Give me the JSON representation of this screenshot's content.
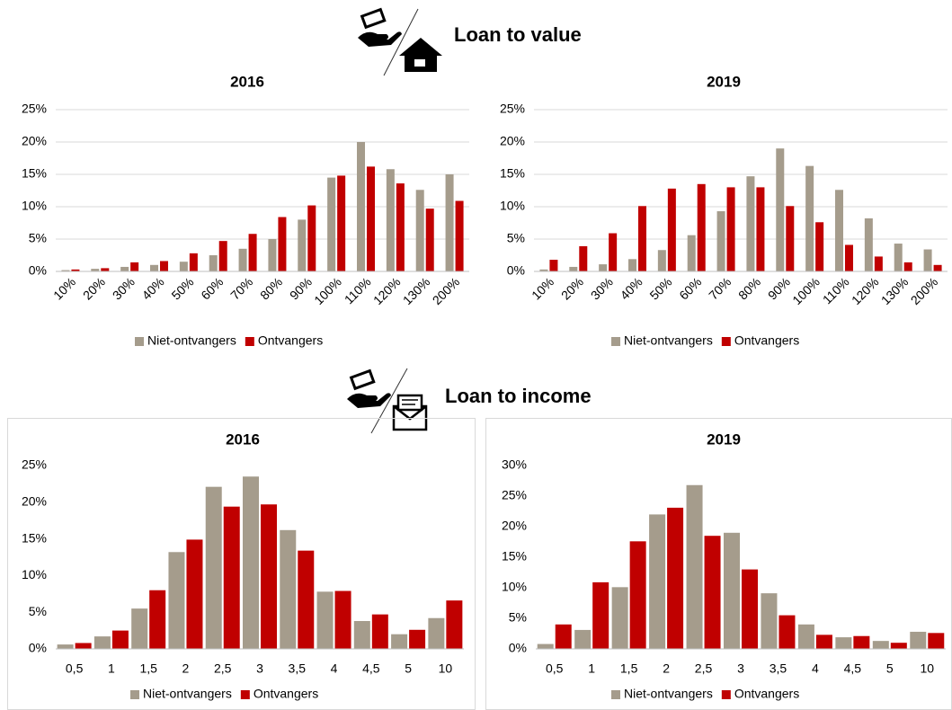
{
  "sections": [
    {
      "title": "Loan to value"
    },
    {
      "title": "Loan to income"
    }
  ],
  "chart_data": [
    {
      "type": "bar",
      "title": "2016",
      "categories": [
        "10%",
        "20%",
        "30%",
        "40%",
        "50%",
        "60%",
        "70%",
        "80%",
        "90%",
        "100%",
        "110%",
        "120%",
        "130%",
        "200%"
      ],
      "series": [
        {
          "name": "Niet-ontvangers",
          "color": "#a59c8c",
          "values": [
            0.2,
            0.4,
            0.7,
            1.0,
            1.5,
            2.5,
            3.5,
            5.0,
            8.0,
            14.5,
            20.0,
            15.8,
            12.6,
            15.0
          ]
        },
        {
          "name": "Ontvangers",
          "color": "#c00000",
          "values": [
            0.3,
            0.5,
            1.4,
            1.6,
            2.8,
            4.7,
            5.8,
            8.4,
            10.2,
            14.8,
            16.2,
            13.6,
            9.7,
            10.9
          ]
        }
      ],
      "ylim": [
        0,
        25
      ],
      "yticks": [
        {
          "value": 0,
          "label": "0%"
        },
        {
          "value": 5,
          "label": "5%"
        },
        {
          "value": 10,
          "label": "10%"
        },
        {
          "value": 15,
          "label": "15%"
        },
        {
          "value": 20,
          "label": "20%"
        },
        {
          "value": 25,
          "label": "25%"
        }
      ],
      "grid": true,
      "legend": "bottom"
    },
    {
      "type": "bar",
      "title": "2019",
      "categories": [
        "10%",
        "20%",
        "30%",
        "40%",
        "50%",
        "60%",
        "70%",
        "80%",
        "90%",
        "100%",
        "110%",
        "120%",
        "130%",
        "200%"
      ],
      "series": [
        {
          "name": "Niet-ontvangers",
          "color": "#a59c8c",
          "values": [
            0.3,
            0.7,
            1.1,
            1.9,
            3.3,
            5.6,
            9.3,
            14.7,
            19.0,
            16.3,
            12.6,
            8.2,
            4.3,
            3.4
          ]
        },
        {
          "name": "Ontvangers",
          "color": "#c00000",
          "values": [
            1.8,
            3.9,
            5.9,
            10.1,
            12.8,
            13.5,
            13.0,
            13.0,
            10.1,
            7.6,
            4.1,
            2.3,
            1.4,
            1.0
          ]
        }
      ],
      "ylim": [
        0,
        25
      ],
      "yticks": [
        {
          "value": 0,
          "label": "0%"
        },
        {
          "value": 5,
          "label": "5%"
        },
        {
          "value": 10,
          "label": "10%"
        },
        {
          "value": 15,
          "label": "15%"
        },
        {
          "value": 20,
          "label": "20%"
        },
        {
          "value": 25,
          "label": "25%"
        }
      ],
      "grid": true,
      "legend": "bottom"
    },
    {
      "type": "bar",
      "title": "2016",
      "categories": [
        "0,5",
        "1",
        "1,5",
        "2",
        "2,5",
        "3",
        "3,5",
        "4",
        "4,5",
        "5",
        "10"
      ],
      "series": [
        {
          "name": "Niet-ontvangers",
          "color": "#a59c8c",
          "values": [
            0.6,
            1.7,
            5.5,
            13.2,
            22.1,
            23.5,
            16.2,
            7.8,
            3.8,
            2.0,
            4.2
          ]
        },
        {
          "name": "Ontvangers",
          "color": "#c00000",
          "values": [
            0.8,
            2.5,
            8.0,
            14.9,
            19.4,
            19.7,
            13.4,
            7.9,
            4.7,
            2.6,
            6.6
          ]
        }
      ],
      "ylim": [
        0,
        25
      ],
      "yticks": [
        {
          "value": 0,
          "label": "0%"
        },
        {
          "value": 5,
          "label": "5%"
        },
        {
          "value": 10,
          "label": "10%"
        },
        {
          "value": 15,
          "label": "15%"
        },
        {
          "value": 20,
          "label": "20%"
        },
        {
          "value": 25,
          "label": "25%"
        }
      ],
      "grid": false,
      "legend": "bottom"
    },
    {
      "type": "bar",
      "title": "2019",
      "categories": [
        "0,5",
        "1",
        "1,5",
        "2",
        "2,5",
        "3",
        "3,5",
        "4",
        "4,5",
        "5",
        "10"
      ],
      "series": [
        {
          "name": "Niet-ontvangers",
          "color": "#a59c8c",
          "values": [
            0.8,
            3.1,
            10.1,
            22.0,
            26.8,
            19.0,
            9.1,
            4.0,
            1.9,
            1.3,
            2.8
          ]
        },
        {
          "name": "Ontvangers",
          "color": "#c00000",
          "values": [
            4.0,
            10.9,
            17.6,
            23.1,
            18.5,
            13.0,
            5.5,
            2.3,
            2.1,
            1.0,
            2.6
          ]
        }
      ],
      "ylim": [
        0,
        30
      ],
      "yticks": [
        {
          "value": 0,
          "label": "0%"
        },
        {
          "value": 5,
          "label": "5%"
        },
        {
          "value": 10,
          "label": "10%"
        },
        {
          "value": 15,
          "label": "15%"
        },
        {
          "value": 20,
          "label": "20%"
        },
        {
          "value": 25,
          "label": "25%"
        },
        {
          "value": 30,
          "label": "30%"
        }
      ],
      "grid": false,
      "legend": "bottom"
    }
  ]
}
